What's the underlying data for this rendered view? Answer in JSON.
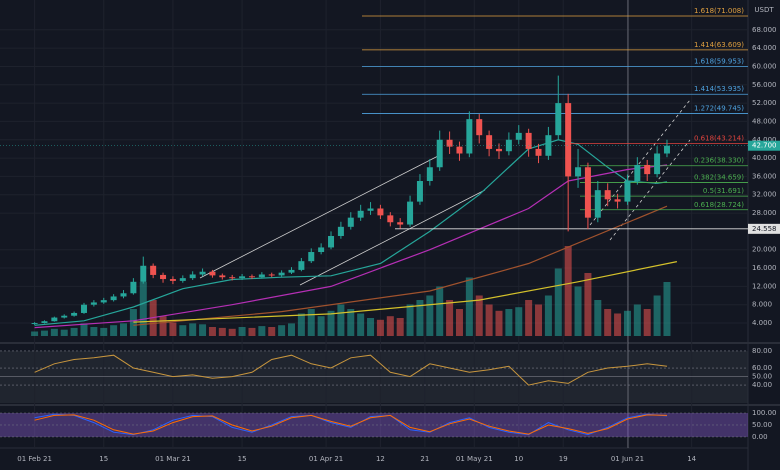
{
  "chart_data": {
    "type": "candlestick",
    "unit": "USDT",
    "xlim": [
      -7,
      144.4
    ],
    "ylim": [
      0.3,
      74.5
    ],
    "xticks": [
      {
        "value": 0,
        "label": "01 Feb 21"
      },
      {
        "value": 14,
        "label": "15"
      },
      {
        "value": 28,
        "label": "01 Mar 21"
      },
      {
        "value": 42,
        "label": "15"
      },
      {
        "value": 59,
        "label": "01 Apr 21"
      },
      {
        "value": 70,
        "label": "12"
      },
      {
        "value": 79,
        "label": "21"
      },
      {
        "value": 89,
        "label": "01 May 21"
      },
      {
        "value": 98,
        "label": "10"
      },
      {
        "value": 107,
        "label": "19"
      },
      {
        "value": 120,
        "label": "01 Jun 21"
      },
      {
        "value": 133,
        "label": "14"
      }
    ],
    "yticks": [
      {
        "value": 4,
        "label": "4.000"
      },
      {
        "value": 8,
        "label": "8.000"
      },
      {
        "value": 12,
        "label": "12.000"
      },
      {
        "value": 16,
        "label": "16.000"
      },
      {
        "value": 20,
        "label": "20.000"
      },
      {
        "value": 28,
        "label": "28.000"
      },
      {
        "value": 32,
        "label": "32.000"
      },
      {
        "value": 36,
        "label": "36.000"
      },
      {
        "value": 40,
        "label": "40.000"
      },
      {
        "value": 44,
        "label": "44.000"
      },
      {
        "value": 48,
        "label": "48.000"
      },
      {
        "value": 52,
        "label": "52.000"
      },
      {
        "value": 56,
        "label": "56.000"
      },
      {
        "value": 60,
        "label": "60.000"
      },
      {
        "value": 64,
        "label": "64.000"
      },
      {
        "value": 68,
        "label": "68.000"
      }
    ],
    "grid": true,
    "up_color": "#26a69a",
    "down_color": "#ef5350",
    "candles": {
      "x": [
        0,
        2,
        4,
        6,
        8,
        10,
        12,
        14,
        16,
        18,
        20,
        22,
        24,
        26,
        28,
        30,
        32,
        34,
        36,
        38,
        40,
        42,
        44,
        46,
        48,
        50,
        52,
        54,
        56,
        58,
        60,
        62,
        64,
        66,
        68,
        70,
        72,
        74,
        76,
        78,
        80,
        82,
        84,
        86,
        88,
        90,
        92,
        94,
        96,
        98,
        100,
        102,
        104,
        106,
        108,
        110,
        112,
        114,
        116,
        118,
        120,
        122,
        124,
        126,
        128
      ],
      "open": [
        3.8,
        4.0,
        4.4,
        5.2,
        5.6,
        6.2,
        8.0,
        8.5,
        9.0,
        9.8,
        10.5,
        13.0,
        16.5,
        14.5,
        13.6,
        13.2,
        13.8,
        14.6,
        15.2,
        14.4,
        14.0,
        13.8,
        14.2,
        14.0,
        14.6,
        14.4,
        15.0,
        15.6,
        17.5,
        19.5,
        20.5,
        23.0,
        25.0,
        27.0,
        28.5,
        29.0,
        27.5,
        26.0,
        25.5,
        30.5,
        35.0,
        38.0,
        44.0,
        42.5,
        41.0,
        48.5,
        45.0,
        42.0,
        41.5,
        44.0,
        45.5,
        42.0,
        40.5,
        45.0,
        52.0,
        36.0,
        38.0,
        27.0,
        33.0,
        31.0,
        30.5,
        35.0,
        38.5,
        36.5,
        41.0
      ],
      "high": [
        4.2,
        4.6,
        5.4,
        5.9,
        6.5,
        8.4,
        9.0,
        9.5,
        10.3,
        11.2,
        13.8,
        18.5,
        17.0,
        15.0,
        14.2,
        14.4,
        15.3,
        15.9,
        15.6,
        14.8,
        14.5,
        14.7,
        14.6,
        15.1,
        15.0,
        15.5,
        16.2,
        18.2,
        20.3,
        21.4,
        24.0,
        26.1,
        28.2,
        29.8,
        30.4,
        29.8,
        28.2,
        26.9,
        31.8,
        36.5,
        39.8,
        46.0,
        45.8,
        43.6,
        50.2,
        49.6,
        46.0,
        43.2,
        45.6,
        47.2,
        46.4,
        43.1,
        46.8,
        58.0,
        54.0,
        42.0,
        39.0,
        35.0,
        34.5,
        32.2,
        36.4,
        40.2,
        39.6,
        42.6,
        44.0
      ],
      "low": [
        3.6,
        3.9,
        4.3,
        5.0,
        5.4,
        6.0,
        7.6,
        8.2,
        8.7,
        9.4,
        10.2,
        12.6,
        13.8,
        12.8,
        12.5,
        12.8,
        13.4,
        14.2,
        13.9,
        13.5,
        13.3,
        13.4,
        13.6,
        13.7,
        14.0,
        14.1,
        14.7,
        15.3,
        17.1,
        19.0,
        20.1,
        22.4,
        24.4,
        26.3,
        27.6,
        26.7,
        25.1,
        24.6,
        25.0,
        29.8,
        34.0,
        37.2,
        40.9,
        39.4,
        40.2,
        43.2,
        40.4,
        39.8,
        40.6,
        43.0,
        40.3,
        38.9,
        39.6,
        44.0,
        24.0,
        33.5,
        24.5,
        26.0,
        29.5,
        29.0,
        29.8,
        34.2,
        35.0,
        35.8,
        40.2
      ],
      "close": [
        4.0,
        4.4,
        5.2,
        5.6,
        6.2,
        8.0,
        8.5,
        9.0,
        9.8,
        10.5,
        13.0,
        16.5,
        14.5,
        13.6,
        13.2,
        13.8,
        14.6,
        15.2,
        14.4,
        14.0,
        13.8,
        14.2,
        14.0,
        14.6,
        14.4,
        15.0,
        15.6,
        17.5,
        19.5,
        20.5,
        23.0,
        25.0,
        27.0,
        28.5,
        29.0,
        27.5,
        26.0,
        25.5,
        30.5,
        35.0,
        38.0,
        44.0,
        42.5,
        41.0,
        48.5,
        45.0,
        42.0,
        41.5,
        44.0,
        45.5,
        42.0,
        40.5,
        45.0,
        52.0,
        36.0,
        38.0,
        27.0,
        33.0,
        31.0,
        30.5,
        35.0,
        38.5,
        36.5,
        41.0,
        42.7
      ],
      "volume": [
        5,
        6,
        8,
        7,
        9,
        14,
        10,
        9,
        12,
        14,
        30,
        60,
        40,
        22,
        15,
        12,
        14,
        13,
        10,
        9,
        8,
        10,
        9,
        11,
        10,
        12,
        14,
        25,
        30,
        22,
        28,
        35,
        30,
        25,
        20,
        18,
        22,
        20,
        35,
        40,
        45,
        55,
        40,
        30,
        65,
        45,
        35,
        28,
        30,
        32,
        40,
        35,
        45,
        75,
        100,
        55,
        70,
        40,
        30,
        25,
        28,
        35,
        30,
        45,
        60
      ]
    },
    "series": [
      {
        "color": "#26a69a",
        "x": [
          0,
          10,
          20,
          30,
          40,
          50,
          60,
          70,
          80,
          90,
          100,
          106,
          110,
          116,
          120,
          126,
          128
        ],
        "values": [
          3.5,
          4.5,
          7.5,
          11.5,
          13.5,
          14.0,
          14.3,
          17,
          24,
          32,
          42,
          44,
          43,
          38,
          35,
          34.5,
          34.8
        ]
      },
      {
        "color": "#b52fb5",
        "x": [
          0,
          20,
          40,
          60,
          80,
          100,
          108,
          120,
          128
        ],
        "values": [
          3,
          4.5,
          8,
          12,
          20,
          29,
          35,
          37.5,
          38.5
        ]
      },
      {
        "color": "#a0522d",
        "x": [
          20,
          50,
          80,
          100,
          128
        ],
        "values": [
          3.5,
          6.5,
          11,
          17,
          29.5
        ]
      },
      {
        "color": "#d4c12b",
        "x": [
          20,
          60,
          90,
          110,
          130
        ],
        "values": [
          4.2,
          6,
          9,
          13,
          17.4
        ]
      }
    ],
    "fib": [
      {
        "value": 71.008,
        "label": "1.618(71.008)",
        "color": "#e0a040"
      },
      {
        "value": 63.609,
        "label": "1.414(63.609)",
        "color": "#e0a040"
      },
      {
        "value": 59.953,
        "label": "1.618(59.953)",
        "color": "#4fa3e0"
      },
      {
        "value": 53.935,
        "label": "1.414(53.935)",
        "color": "#4fa3e0"
      },
      {
        "value": 49.745,
        "label": "1.272(49.745)",
        "color": "#4fa3e0"
      },
      {
        "value": 43.214,
        "label": "0.618(43.214)",
        "color": "#e0443e"
      },
      {
        "value": 38.33,
        "label": "0.236(38.330)",
        "color": "#4caf50"
      },
      {
        "value": 34.659,
        "label": "0.382(34.659)",
        "color": "#4caf50"
      },
      {
        "value": 31.691,
        "label": "0.5(31.691)",
        "color": "#4caf50"
      },
      {
        "value": 28.724,
        "label": "0.618(28.724)",
        "color": "#4caf50"
      }
    ],
    "last": {
      "value": 42.7,
      "label": "42.700"
    },
    "support": {
      "value": 24.558,
      "label": "24.558"
    },
    "rsi": {
      "ylim": [
        19,
        87
      ],
      "yticks": [
        {
          "value": 80,
          "label": "80.00"
        },
        {
          "value": 60,
          "label": "60.00"
        },
        {
          "value": 50,
          "label": "50.00"
        },
        {
          "value": 40,
          "label": "40.00"
        }
      ],
      "color": "#c8963e",
      "x": [
        0,
        4,
        8,
        12,
        16,
        20,
        24,
        28,
        32,
        36,
        40,
        44,
        48,
        52,
        56,
        60,
        64,
        68,
        72,
        76,
        80,
        84,
        88,
        92,
        96,
        100,
        104,
        108,
        112,
        116,
        120,
        124,
        128
      ],
      "values": [
        55,
        65,
        70,
        72,
        75,
        60,
        55,
        50,
        52,
        48,
        50,
        55,
        70,
        75,
        65,
        60,
        72,
        75,
        55,
        50,
        65,
        60,
        55,
        58,
        62,
        40,
        45,
        42,
        55,
        60,
        62,
        65,
        62
      ]
    },
    "stoch": {
      "ylim": [
        -42,
        121
      ],
      "yticks": [
        {
          "value": 100,
          "label": "100.00"
        },
        {
          "value": 50,
          "label": "50.00"
        },
        {
          "value": 0,
          "label": "0.00"
        }
      ],
      "x": [
        0,
        4,
        8,
        12,
        16,
        20,
        24,
        28,
        32,
        36,
        40,
        44,
        48,
        52,
        56,
        60,
        64,
        68,
        72,
        76,
        80,
        84,
        88,
        92,
        96,
        100,
        104,
        108,
        112,
        116,
        120,
        124,
        128
      ],
      "series": [
        {
          "color": "#2962ff",
          "values": [
            80,
            95,
            90,
            60,
            20,
            10,
            30,
            70,
            90,
            85,
            40,
            20,
            50,
            85,
            90,
            60,
            40,
            85,
            90,
            30,
            20,
            60,
            80,
            40,
            20,
            10,
            60,
            30,
            10,
            40,
            80,
            95,
            88
          ]
        },
        {
          "color": "#ff6d00",
          "values": [
            70,
            90,
            92,
            70,
            30,
            12,
            25,
            60,
            85,
            88,
            50,
            25,
            45,
            80,
            90,
            65,
            45,
            80,
            90,
            40,
            22,
            55,
            75,
            45,
            25,
            12,
            50,
            35,
            15,
            35,
            75,
            92,
            90
          ]
        }
      ]
    }
  }
}
